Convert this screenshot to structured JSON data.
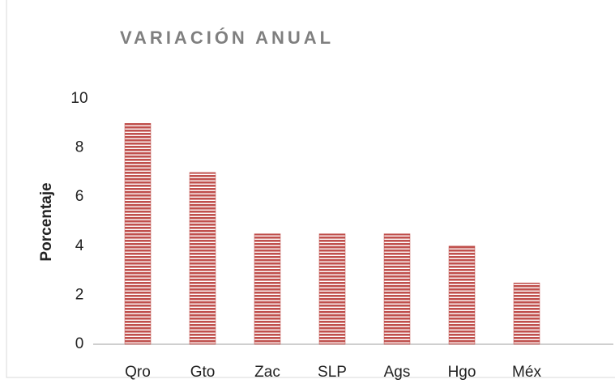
{
  "chart_data": {
    "type": "bar",
    "title": "VARIACIÓN ANUAL",
    "y_label": "Porcentaje",
    "categories": [
      "Qro",
      "Gto",
      "Zac",
      "SLP",
      "Ags",
      "Hgo",
      "Méx"
    ],
    "values": [
      9,
      7,
      4.5,
      4.5,
      4.5,
      4,
      2.5
    ],
    "color": "#c0504d",
    "ylim": [
      0,
      10
    ],
    "yticks": [
      0,
      2,
      4,
      6,
      8,
      10
    ],
    "grid": false
  }
}
